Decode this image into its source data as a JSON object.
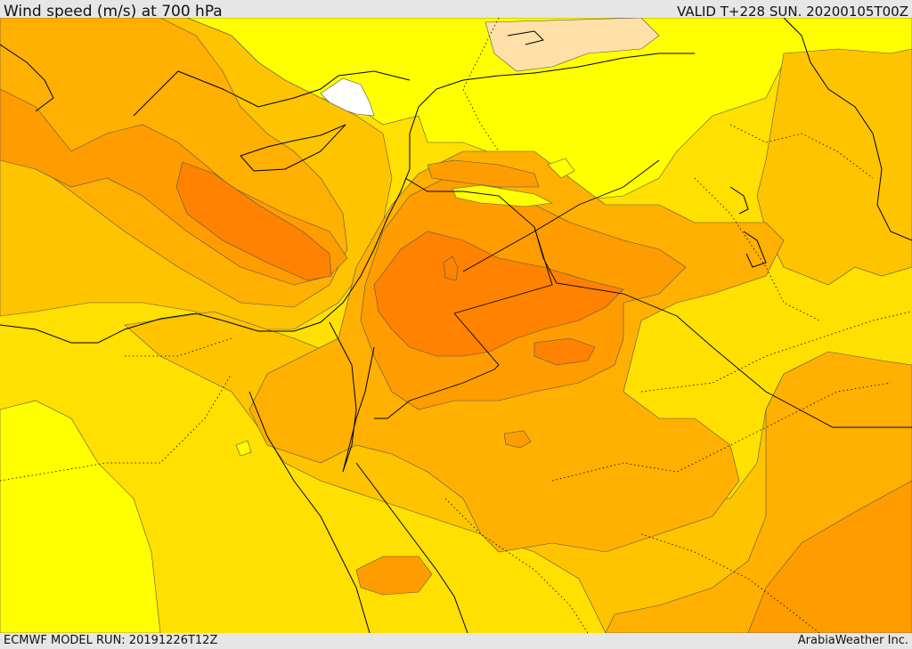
{
  "header": {
    "title": "Wind speed (m/s) at 700 hPa",
    "valid_time": "VALID T+228 SUN. 20200105T00Z"
  },
  "footer": {
    "model_run": "ECMWF MODEL RUN: 20191226T12Z",
    "credit": "ArabiaWeather Inc."
  },
  "map": {
    "field": "wind speed at 700 hPa",
    "colors": {
      "pale_yellow": "#ffff00",
      "light_yellow": "#ffe000",
      "gold": "#ffc400",
      "light_orange": "#ffb000",
      "orange": "#ff9d00",
      "dark_orange": "#ff8200",
      "deep_orange": "#ff7a10",
      "peach": "#ffe0a8",
      "white": "#ffffff",
      "border": "#000000"
    }
  }
}
